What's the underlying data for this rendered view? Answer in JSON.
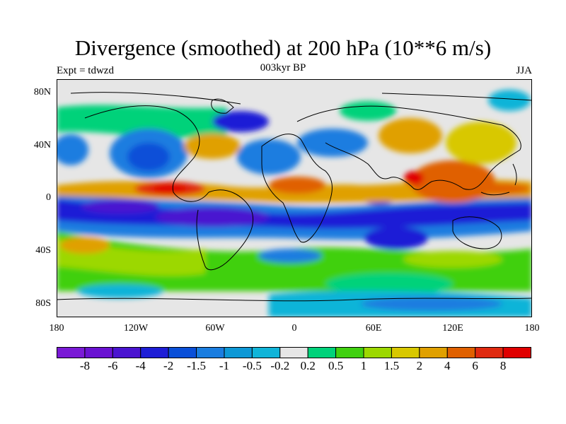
{
  "title": "Divergence (smoothed) at 200 hPa (10**6 m/s)",
  "experiment": "Expt = tdwzd",
  "period": "003kyr BP",
  "season": "JJA",
  "map": {
    "lat_ticks": [
      "80N",
      "40N",
      "0",
      "40S",
      "80S"
    ],
    "lon_ticks": [
      "180",
      "120W",
      "60W",
      "0",
      "60E",
      "120E",
      "180"
    ],
    "background_color": "#e6e6e6",
    "coastline_color": "#000000"
  },
  "colorbar": {
    "labels": [
      "-8",
      "-6",
      "-4",
      "-2",
      "-1.5",
      "-1",
      "-0.5",
      "-0.2",
      "0.2",
      "0.5",
      "1",
      "1.5",
      "2",
      "4",
      "6",
      "8"
    ],
    "colors": [
      "#7a1ad6",
      "#6a12d2",
      "#4a14d0",
      "#1e1ed6",
      "#0a4fd8",
      "#1a7de0",
      "#0d98d6",
      "#10b4d8",
      "#e6e6e6",
      "#00d27a",
      "#40d010",
      "#9cd800",
      "#d8c800",
      "#e0a000",
      "#e06000",
      "#e02a10",
      "#e00000"
    ]
  }
}
